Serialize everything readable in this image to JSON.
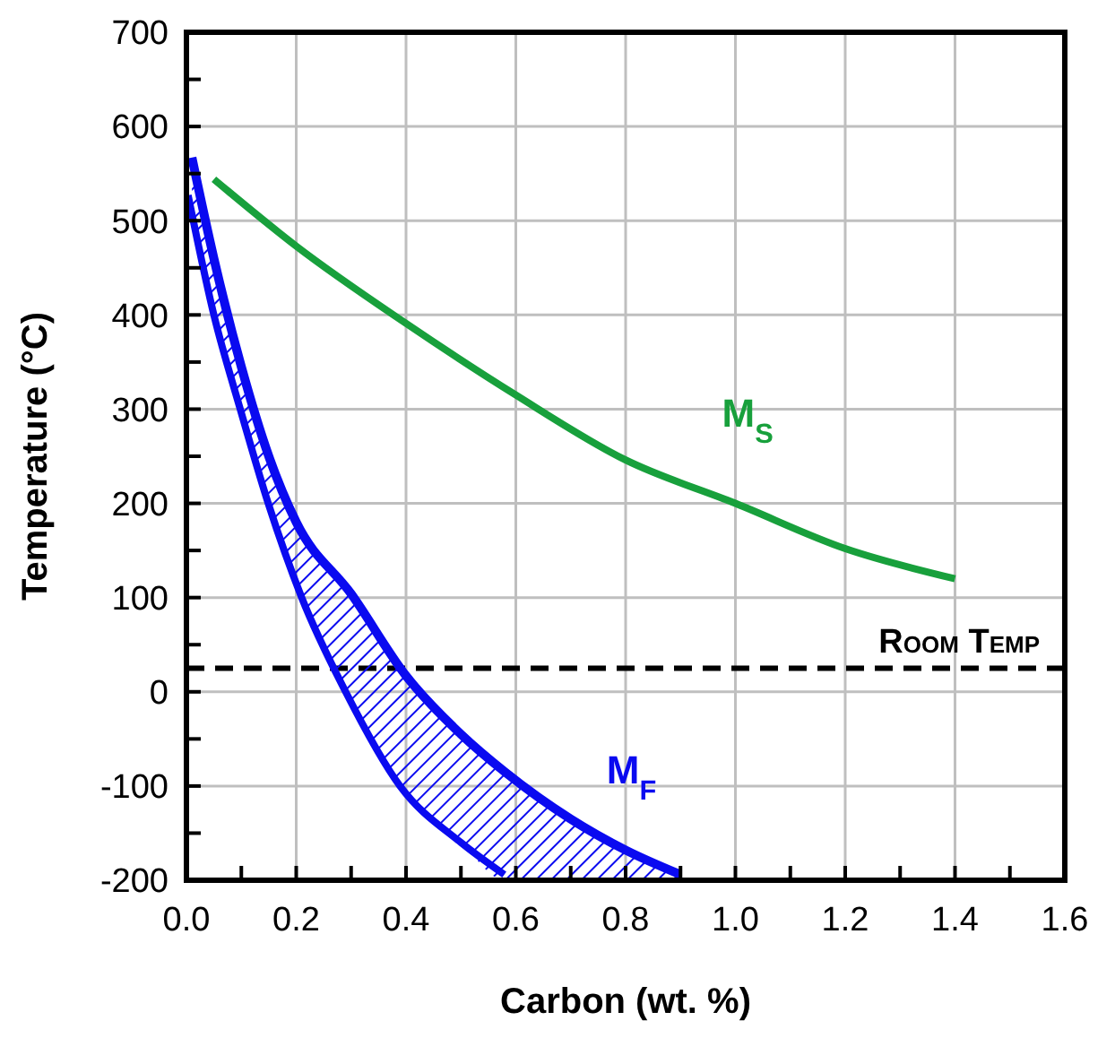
{
  "chart_data": {
    "type": "line",
    "xlabel": "Carbon (wt. %)",
    "ylabel": "Temperature (°C)",
    "xlim": [
      0,
      1.6
    ],
    "ylim": [
      -200,
      700
    ],
    "xticks": [
      {
        "value": 0,
        "label": "0.0"
      },
      {
        "value": 0.1,
        "label": null
      },
      {
        "value": 0.2,
        "label": "0.2"
      },
      {
        "value": 0.3,
        "label": null
      },
      {
        "value": 0.4,
        "label": "0.4"
      },
      {
        "value": 0.5,
        "label": null
      },
      {
        "value": 0.6,
        "label": "0.6"
      },
      {
        "value": 0.7,
        "label": null
      },
      {
        "value": 0.8,
        "label": "0.8"
      },
      {
        "value": 0.9,
        "label": null
      },
      {
        "value": 1,
        "label": "1.0"
      },
      {
        "value": 1.1,
        "label": null
      },
      {
        "value": 1.2,
        "label": "1.2"
      },
      {
        "value": 1.3,
        "label": null
      },
      {
        "value": 1.4,
        "label": "1.4"
      },
      {
        "value": 1.5,
        "label": null
      },
      {
        "value": 1.6,
        "label": "1.6"
      }
    ],
    "yticks": [
      -200,
      {
        "value": -150,
        "label": null
      },
      -100,
      {
        "value": -50,
        "label": null
      },
      0,
      {
        "value": 50,
        "label": null
      },
      100,
      {
        "value": 150,
        "label": null
      },
      200,
      {
        "value": 250,
        "label": null
      },
      300,
      {
        "value": 350,
        "label": null
      },
      400,
      {
        "value": 450,
        "label": null
      },
      500,
      {
        "value": 550,
        "label": null
      },
      600,
      {
        "value": 650,
        "label": null
      },
      700
    ],
    "grid": true,
    "series": [
      {
        "name": "M$_{S}$",
        "color": "#18a03c",
        "x": [
          0.05,
          0.2,
          0.4,
          0.6,
          0.8,
          1.0,
          1.2,
          1.4
        ],
        "values": [
          544,
          473,
          391,
          315,
          246,
          200,
          152,
          120
        ]
      },
      {
        "name": "M$_{F}$",
        "color": "#0a0af0",
        "x": [
          0.01,
          0.05,
          0.1,
          0.15,
          0.2,
          0.3,
          0.4,
          0.5,
          0.58,
          0.7,
          0.8,
          0.9
        ],
        "values": [
          567,
          460,
          345,
          250,
          180,
          104,
          17,
          -45,
          -85,
          -135,
          -168,
          -194
        ],
        "lower": [
          505,
          400,
          295,
          198,
          115,
          -8,
          -105,
          -160,
          -200,
          -200,
          -200,
          -200
        ],
        "upper": [
          567,
          460,
          345,
          250,
          180,
          104,
          17,
          -45,
          -85,
          -135,
          -168,
          -194
        ]
      },
      {
        "color": "#0a0af0",
        "x": [
          0.003,
          0.05,
          0.098,
          0.149,
          0.21,
          0.29,
          0.389,
          0.5,
          0.579
        ],
        "values": [
          527,
          400,
          300,
          200,
          100,
          0,
          -100,
          -160,
          -194
        ]
      }
    ],
    "ref_lines": [
      {
        "axis": "y",
        "value": 25,
        "label": "Room Temp",
        "color": "#000000",
        "line_style": "dashed"
      }
    ]
  }
}
